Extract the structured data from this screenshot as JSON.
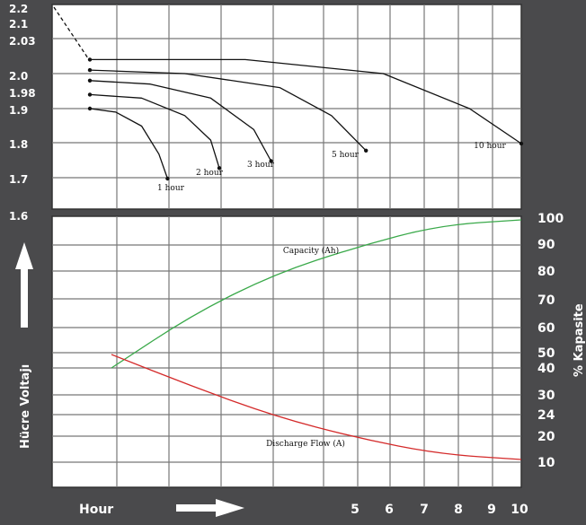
{
  "chart_data": [
    {
      "type": "line",
      "ylabel": "Hücre Voltajı",
      "xlabel": "Hour",
      "y_ticks": [
        "2.2",
        "2.1",
        "2.03",
        "2.0",
        "1.98",
        "1.9",
        "1.8",
        "1.7",
        "1.6"
      ],
      "series": [
        {
          "name": "1 hour",
          "points": [
            [
              0.0,
              1.9
            ],
            [
              0.06,
              1.89
            ],
            [
              0.12,
              1.85
            ],
            [
              0.16,
              1.77
            ],
            [
              0.18,
              1.7
            ]
          ]
        },
        {
          "name": "2 hour",
          "points": [
            [
              0.0,
              1.94
            ],
            [
              0.12,
              1.93
            ],
            [
              0.22,
              1.88
            ],
            [
              0.28,
              1.81
            ],
            [
              0.3,
              1.73
            ]
          ]
        },
        {
          "name": "3 hour",
          "points": [
            [
              0.0,
              1.98
            ],
            [
              0.14,
              1.97
            ],
            [
              0.28,
              1.93
            ],
            [
              0.38,
              1.84
            ],
            [
              0.42,
              1.75
            ]
          ]
        },
        {
          "name": "5 hour",
          "points": [
            [
              0.0,
              2.01
            ],
            [
              0.22,
              2.0
            ],
            [
              0.44,
              1.96
            ],
            [
              0.56,
              1.88
            ],
            [
              0.64,
              1.78
            ]
          ]
        },
        {
          "name": "10 hour",
          "points": [
            [
              0.0,
              2.04
            ],
            [
              0.36,
              2.04
            ],
            [
              0.68,
              2.0
            ],
            [
              0.88,
              1.9
            ],
            [
              1.0,
              1.8
            ]
          ]
        }
      ],
      "start_dashed": true
    },
    {
      "type": "line",
      "x_ticks": [
        "5",
        "6",
        "7",
        "8",
        "9",
        "10"
      ],
      "y2label": "% Kapasite",
      "y2_ticks": [
        "100",
        "90",
        "80",
        "70",
        "60",
        "50",
        "40",
        "30",
        "24",
        "20",
        "10"
      ],
      "series": [
        {
          "name": "Capacity (Ah)",
          "color": "#3aa94a",
          "points": [
            [
              0.0,
              45
            ],
            [
              0.2,
              65
            ],
            [
              0.4,
              80
            ],
            [
              0.6,
              90
            ],
            [
              0.8,
              98
            ],
            [
              1.0,
              100
            ]
          ]
        },
        {
          "name": "Discharge Flow (A)",
          "color": "#d42a2a",
          "points": [
            [
              0.0,
              50
            ],
            [
              0.2,
              38
            ],
            [
              0.4,
              27
            ],
            [
              0.6,
              19
            ],
            [
              0.8,
              13
            ],
            [
              1.0,
              11
            ]
          ]
        }
      ]
    }
  ],
  "labels": {
    "left_axis": "Hücre Voltajı",
    "right_axis": "% Kapasite",
    "hour": "Hour"
  }
}
